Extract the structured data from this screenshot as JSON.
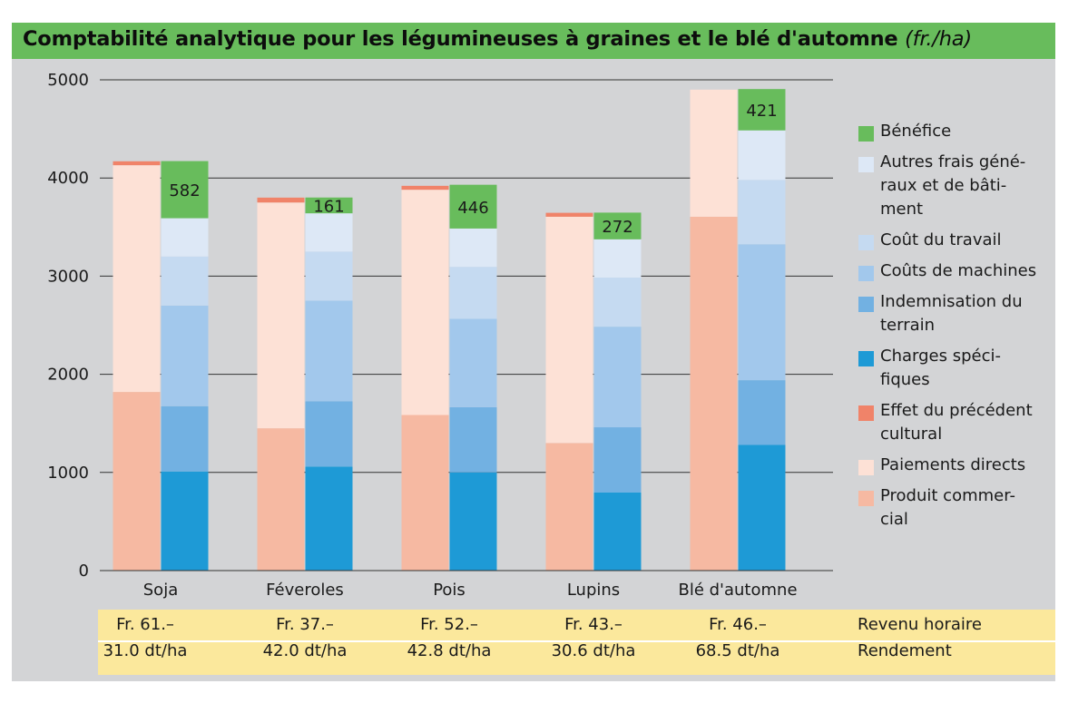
{
  "title": {
    "main": "Comptabilité analytique pour les légumineuses à graines et le blé d'automne",
    "unit": "(fr./ha)"
  },
  "chart_data": {
    "type": "bar",
    "stacked": true,
    "grouped": true,
    "title": "Comptabilité analytique pour les légumineuses à graines et le blé d'automne (fr./ha)",
    "ylim": [
      0,
      5000
    ],
    "yticks": [
      0,
      1000,
      2000,
      3000,
      4000,
      5000
    ],
    "grid": true,
    "legend_position": "right",
    "categories": [
      "Soja",
      "Féveroles",
      "Pois",
      "Lupins",
      "Blé d'automne"
    ],
    "stacks": [
      {
        "name": "revenue",
        "series": [
          {
            "name": "Produit commercial",
            "color": "#f6b9a2",
            "values": [
              1820,
              1450,
              1585,
              1300,
              3605
            ]
          },
          {
            "name": "Paiements directs",
            "color": "#fde1d6",
            "values": [
              2310,
              2300,
              2295,
              2305,
              1295
            ]
          },
          {
            "name": "Effet du précédent cultural",
            "color": "#f08369",
            "values": [
              40,
              50,
              40,
              40,
              0
            ]
          }
        ]
      },
      {
        "name": "costs",
        "series": [
          {
            "name": "Charges spécifiques",
            "color": "#1e9ad6",
            "values": [
              1010,
              1060,
              1000,
              795,
              1280
            ]
          },
          {
            "name": "Indemnisation du terrain",
            "color": "#72b1e2",
            "values": [
              665,
              665,
              665,
              665,
              660
            ]
          },
          {
            "name": "Coûts de machines",
            "color": "#a2c8ec",
            "values": [
              1025,
              1025,
              900,
              1025,
              1385
            ]
          },
          {
            "name": "Coût du travail",
            "color": "#c5daf1",
            "values": [
              500,
              500,
              530,
              500,
              655
            ]
          },
          {
            "name": "Autres frais généraux et de bâtiment",
            "color": "#dde8f6",
            "values": [
              390,
              390,
              390,
              390,
              505
            ]
          },
          {
            "name": "Bénéfice",
            "color": "#68bc5c",
            "values": [
              582,
              161,
              446,
              272,
              421
            ]
          }
        ]
      }
    ],
    "profit_labels": [
      "582",
      "161",
      "446",
      "272",
      "421"
    ]
  },
  "axis": {
    "ytick_labels": [
      "0",
      "1000",
      "2000",
      "3000",
      "4000",
      "5000"
    ]
  },
  "legend": [
    {
      "label": "Bénéfice",
      "color": "#68bc5c"
    },
    {
      "label": "Autres frais géné-raux et de bâti-ment",
      "color": "#dde8f6",
      "lines": [
        "Autres frais géné-",
        "raux et de bâti-",
        "ment"
      ]
    },
    {
      "label": "Coût du travail",
      "color": "#c5daf1",
      "lines": [
        "Coût du travail"
      ]
    },
    {
      "label": "Coûts de machines",
      "color": "#a2c8ec",
      "lines": [
        "Coûts de machines"
      ]
    },
    {
      "label": "Indemnisation du terrain",
      "color": "#72b1e2",
      "lines": [
        "Indemnisation du",
        "terrain"
      ]
    },
    {
      "label": "Charges spéci-fiques",
      "color": "#1e9ad6",
      "lines": [
        "Charges spéci-",
        "fiques"
      ]
    },
    {
      "label": "Effet du précédent cultural",
      "color": "#f08369",
      "lines": [
        "Effet du précédent",
        "cultural"
      ]
    },
    {
      "label": "Paiements directs",
      "color": "#fde1d6",
      "lines": [
        "Paiements directs"
      ]
    },
    {
      "label": "Produit commer-cial",
      "color": "#f6b9a2",
      "lines": [
        "Produit commer-",
        "cial"
      ]
    }
  ],
  "footer": {
    "revenu_label": "Revenu horaire",
    "rendement_label": "Rendement",
    "revenu": [
      "Fr. 61.–",
      "Fr. 37.–",
      "Fr. 52.–",
      "Fr. 43.–",
      "Fr. 46.–"
    ],
    "rendement": [
      "31.0 dt/ha",
      "42.0 dt/ha",
      "42.8 dt/ha",
      "30.6 dt/ha",
      "68.5 dt/ha"
    ]
  },
  "colors": {
    "panel": "#d3d4d6",
    "title_bar": "#68bc5c",
    "footer_band": "#fbe89c",
    "grid": "#333333"
  }
}
